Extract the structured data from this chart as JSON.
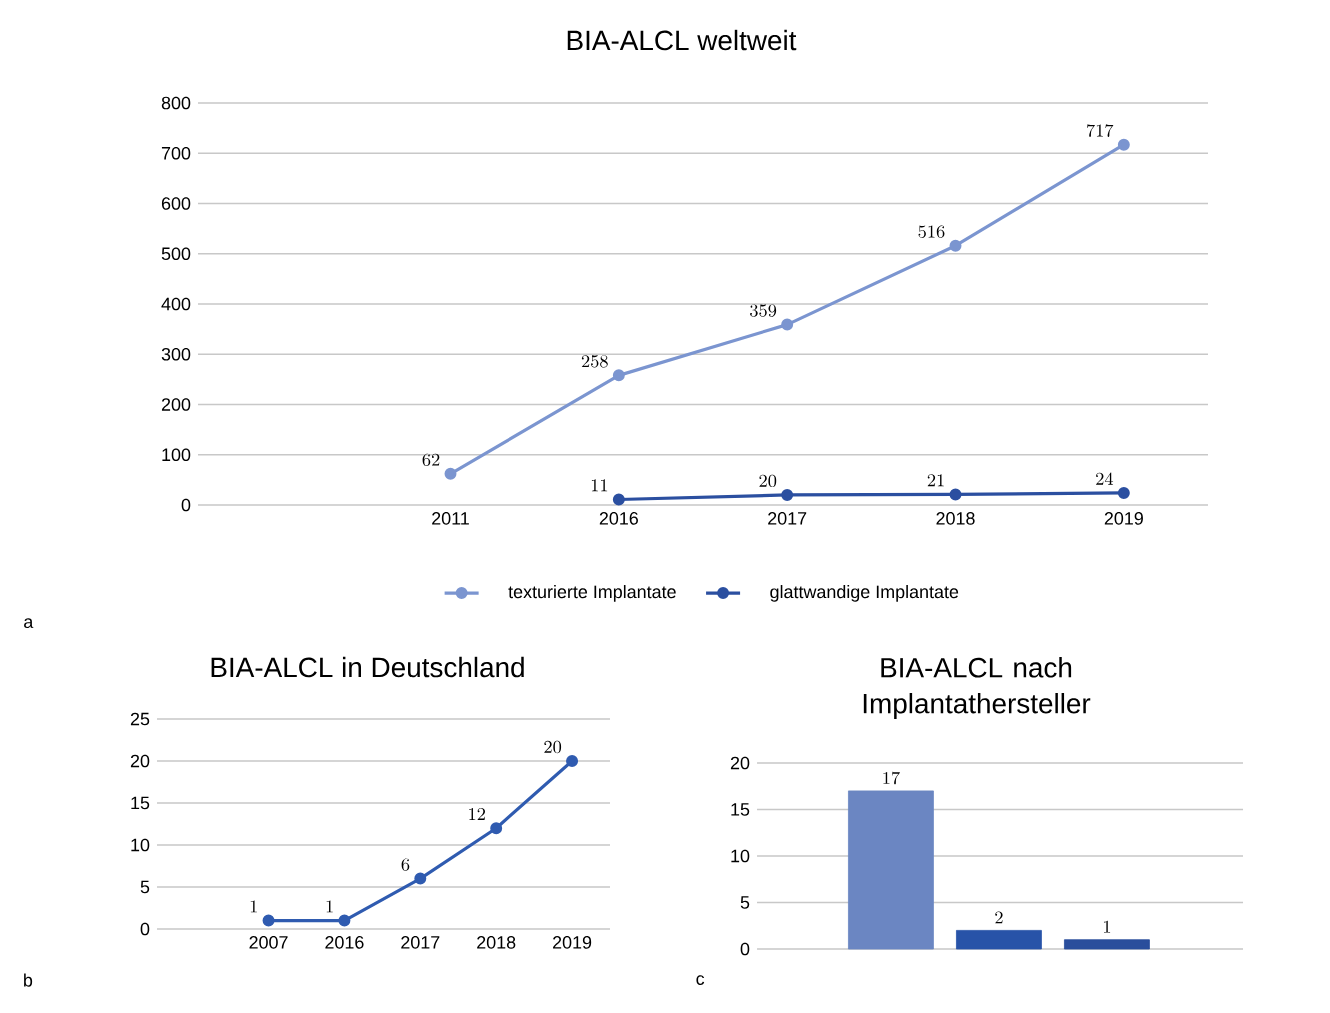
{
  "chart_data": [
    {
      "type": "line",
      "title": "BIA-ALCL weltweit",
      "categories": [
        "2011",
        "2016",
        "2017",
        "2018",
        "2019"
      ],
      "series": [
        {
          "name": "texturierte Implantate",
          "color": "#7b95d0",
          "values": [
            62,
            258,
            359,
            516,
            717
          ]
        },
        {
          "name": "glattwandige Implantate",
          "color": "#2b4fa0",
          "values": [
            null,
            11,
            20,
            21,
            24
          ]
        }
      ],
      "ylim": [
        0,
        800
      ],
      "yticks": [
        0,
        100,
        200,
        300,
        400,
        500,
        600,
        700,
        800
      ],
      "grid": "y",
      "legend": "bottom",
      "marker": "circle",
      "data_labels": true,
      "annotations": [
        "a"
      ]
    },
    {
      "type": "line",
      "title": "BIA-ALCL in Deutschland",
      "categories": [
        "2007",
        "2016",
        "2017",
        "2018",
        "2019"
      ],
      "series": [
        {
          "color": "#2f5bb0",
          "values": [
            1,
            1,
            6,
            12,
            20
          ]
        }
      ],
      "ylim": [
        0,
        25
      ],
      "yticks": [
        0,
        5,
        10,
        15,
        20,
        25
      ],
      "grid": "y",
      "marker": "circle",
      "data_labels": true,
      "annotations": [
        "b"
      ]
    },
    {
      "type": "bar",
      "title": "BIA-ALCL nach Implantathersteller",
      "categories": [
        null,
        null,
        null
      ],
      "values": [
        17,
        2,
        1
      ],
      "colors": [
        "#6b86c2",
        "#2853a8",
        "#2a4e9c"
      ],
      "ylim": [
        0,
        20
      ],
      "yticks": [
        0,
        5,
        10,
        15,
        20
      ],
      "grid": "y",
      "data_labels": true,
      "annotations": [
        "c"
      ]
    }
  ]
}
